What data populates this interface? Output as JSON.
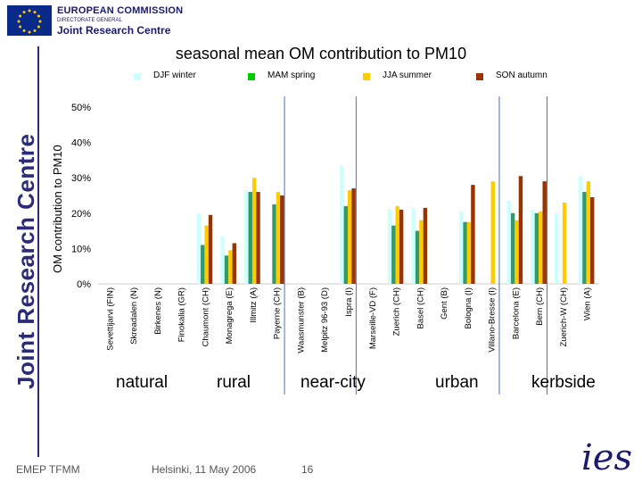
{
  "header": {
    "org_line1": "EUROPEAN COMMISSION",
    "org_line2": "DIRECTORATE GENERAL",
    "org_line3": "Joint Research Centre",
    "vertical_text": "Joint Research Centre"
  },
  "chart_data": {
    "type": "bar",
    "title": "seasonal mean OM contribution to PM10",
    "ylabel": "OM contribution to PM10",
    "xlabel": "",
    "ylim": [
      0,
      50
    ],
    "yticks": [
      "0%",
      "10%",
      "20%",
      "30%",
      "40%",
      "50%"
    ],
    "categories": [
      "Sevettijarvi (FIN)",
      "Skreadalen (N)",
      "Birkenes (N)",
      "Finokalia (GR)",
      "Chaumont (CH)",
      "Monagrega (E)",
      "Illmitz (A)",
      "Payerne (CH)",
      "Waasmunster (B)",
      "Melpitz 96-93 (D)",
      "Ispra (I)",
      "Marseille-VD (F)",
      "Zuerich (CH)",
      "Basel (CH)",
      "Gent (B)",
      "Bologna (I)",
      "Villano-Bresse (I)",
      "Barcelona (E)",
      "Bern (CH)",
      "Zuerich-W (CH)",
      "Wien (A)"
    ],
    "series": [
      {
        "name": "DJF winter",
        "color": "#ccffff",
        "values": [
          null,
          null,
          null,
          null,
          20,
          13.5,
          26.5,
          null,
          null,
          null,
          33.5,
          null,
          21,
          21.5,
          null,
          20.5,
          null,
          23.5,
          21,
          20,
          30.5
        ]
      },
      {
        "name": "MAM spring",
        "color": "#339966",
        "values": [
          null,
          null,
          null,
          null,
          11,
          8,
          26,
          22.5,
          null,
          null,
          22,
          null,
          16.5,
          15,
          null,
          17.5,
          null,
          20,
          20,
          null,
          26
        ]
      },
      {
        "name": "JJA summer",
        "color": "#ffcc00",
        "values": [
          null,
          null,
          null,
          null,
          16.5,
          9.5,
          30,
          26,
          null,
          null,
          26.5,
          null,
          22,
          18,
          null,
          17.5,
          29,
          18,
          20.5,
          23,
          29
        ]
      },
      {
        "name": "SON autumn",
        "color": "#993300",
        "values": [
          null,
          null,
          null,
          null,
          19.5,
          11.5,
          26,
          25,
          null,
          null,
          27,
          null,
          21,
          21.5,
          null,
          28,
          null,
          30.5,
          29,
          null,
          24.5
        ]
      }
    ],
    "groups": [
      {
        "label": "natural"
      },
      {
        "label": "rural"
      },
      {
        "label": "near-city"
      },
      {
        "label": "urban"
      },
      {
        "label": "kerbside"
      }
    ]
  },
  "footer": {
    "left": "EMEP TFMM",
    "center": "Helsinki, 11 May 2006",
    "page": "16",
    "logo_text": "ies"
  }
}
